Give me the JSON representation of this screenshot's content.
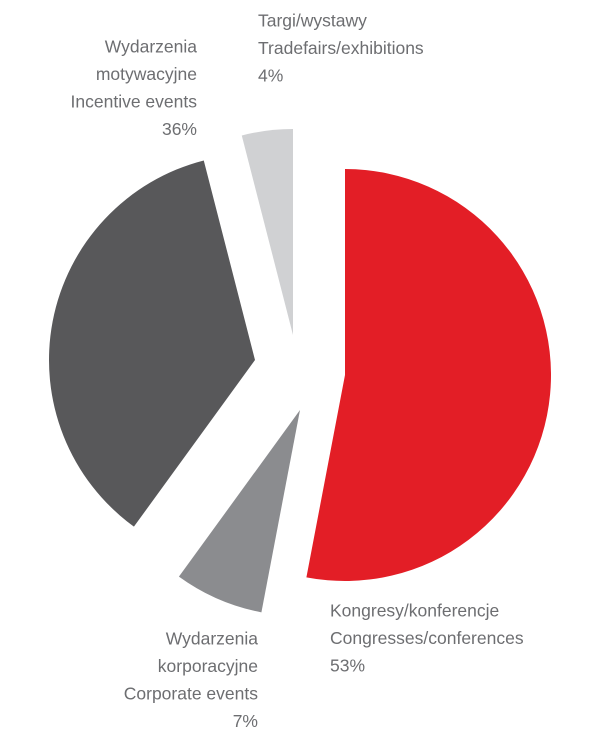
{
  "chart_data": {
    "type": "pie",
    "categories": [
      [
        "Kongresy/konferencje",
        "Congresses/conferences"
      ],
      [
        "Wydarzenia",
        "korporacyjne",
        "Corporate events"
      ],
      [
        "Wydarzenia",
        "motywacyjne",
        "Incentive events"
      ],
      [
        "Targi/wystawy",
        "Tradefairs/exhibitions"
      ]
    ],
    "values": [
      53,
      7,
      36,
      4
    ],
    "value_labels": [
      "53%",
      "7%",
      "36%",
      "4%"
    ],
    "colors": [
      "#e31e26",
      "#8b8c8f",
      "#58585a",
      "#d0d1d3"
    ]
  }
}
